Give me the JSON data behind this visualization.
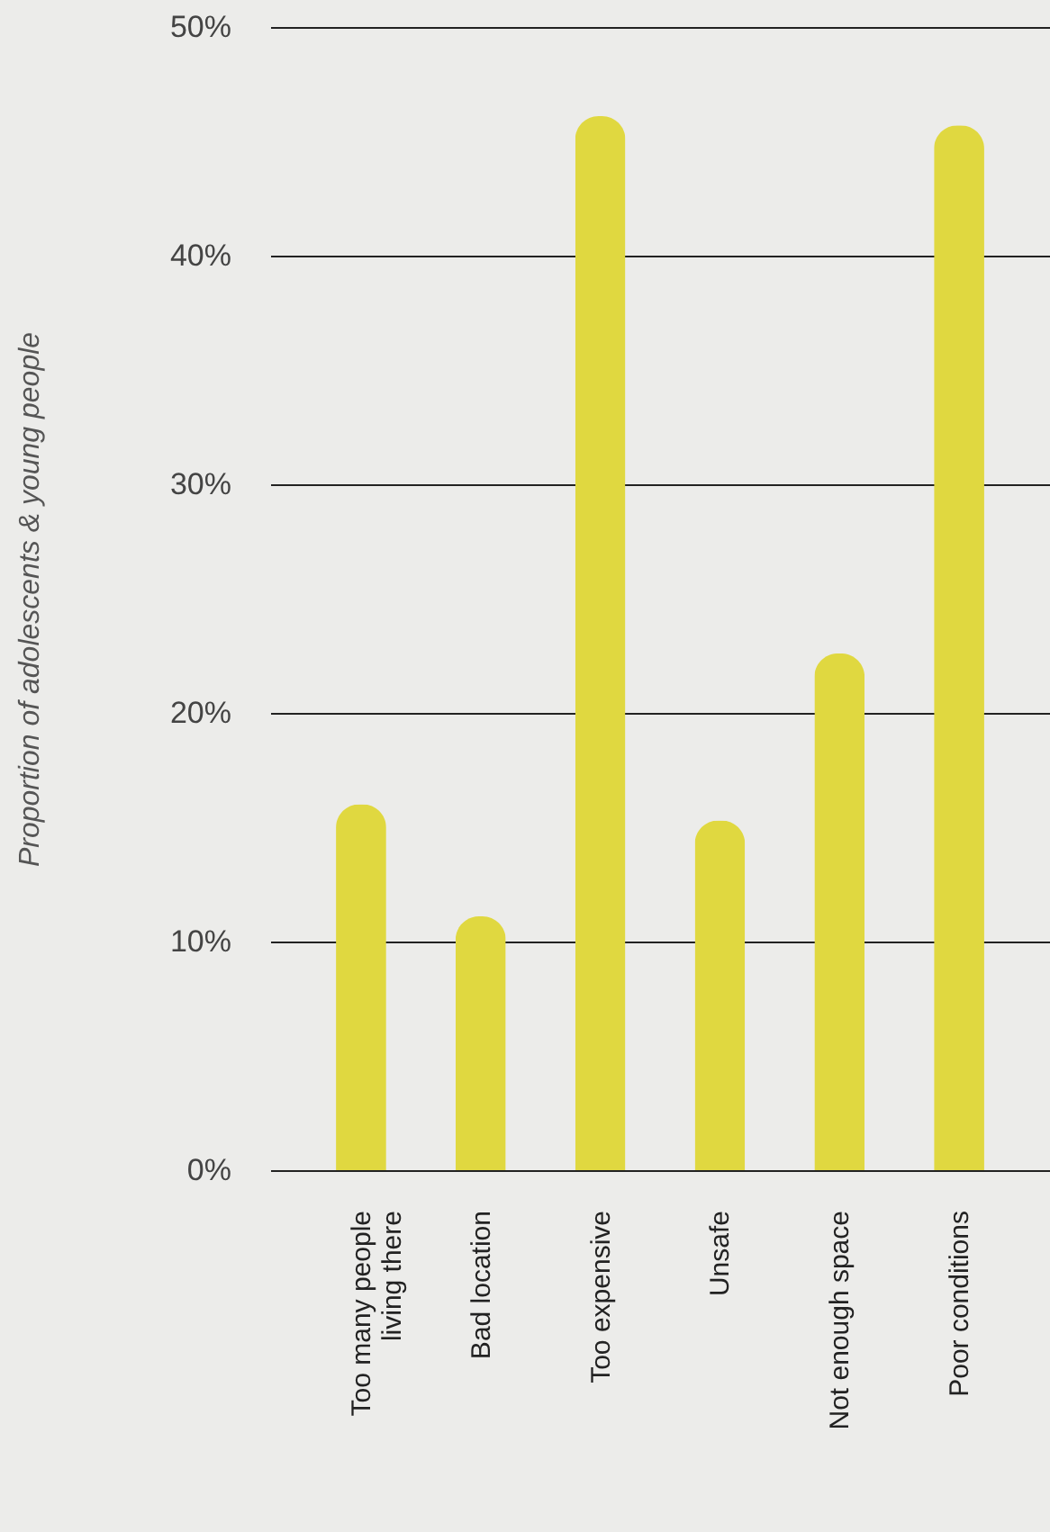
{
  "chart_data": {
    "type": "bar",
    "ylabel": "Proportion of adolescents & young people",
    "categories": [
      "Too many people\nliving there",
      "Bad location",
      "Too expensive",
      "Unsafe",
      "Not enough space",
      "Poor conditions"
    ],
    "values": [
      16.0,
      11.1,
      46.1,
      15.3,
      22.6,
      45.7
    ],
    "color": "#e0d840",
    "ylim": [
      0,
      50
    ],
    "yticks": [
      {
        "value": 0,
        "label": "0%"
      },
      {
        "value": 10,
        "label": "10%"
      },
      {
        "value": 20,
        "label": "20%"
      },
      {
        "value": 30,
        "label": "30%"
      },
      {
        "value": 40,
        "label": "40%"
      },
      {
        "value": 50,
        "label": "50%"
      }
    ],
    "grid": "y"
  }
}
